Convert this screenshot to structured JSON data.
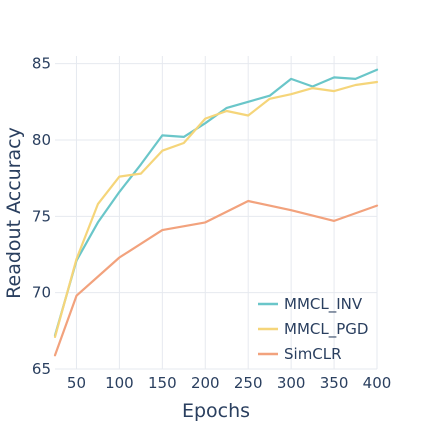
{
  "chart_data": {
    "type": "line",
    "xlabel": "Epochs",
    "ylabel": "Readout Accuracy",
    "xlim": [
      25,
      400
    ],
    "ylim": [
      65,
      85.5
    ],
    "xticks": [
      50,
      100,
      150,
      200,
      250,
      300,
      350,
      400
    ],
    "yticks": [
      65,
      70,
      75,
      80,
      85
    ],
    "grid": true,
    "legend_position": "bottom-right",
    "x": [
      25,
      50,
      75,
      100,
      125,
      150,
      175,
      200,
      225,
      250,
      275,
      300,
      325,
      350,
      375,
      400
    ],
    "series": [
      {
        "name": "MMCL_INV",
        "color": "#6ac6c9",
        "values": [
          67.2,
          72.1,
          74.6,
          76.6,
          78.4,
          80.3,
          80.2,
          81.1,
          82.1,
          82.5,
          82.9,
          84.0,
          83.5,
          84.1,
          84.0,
          84.6
        ]
      },
      {
        "name": "MMCL_PGD",
        "color": "#f5d57a",
        "values": [
          67.1,
          72.2,
          75.8,
          77.6,
          77.8,
          79.3,
          79.8,
          81.4,
          81.9,
          81.6,
          82.7,
          83.0,
          83.4,
          83.2,
          83.6,
          83.8
        ]
      },
      {
        "name": "SimCLR",
        "color": "#f2a27d",
        "values": [
          65.9,
          69.8,
          71.0,
          null,
          null,
          null,
          null,
          null,
          null,
          null,
          null,
          null,
          null,
          null,
          null,
          null
        ]
      }
    ],
    "simclr_points": [
      [
        25,
        65.9
      ],
      [
        50,
        69.8
      ],
      [
        100,
        72.3
      ],
      [
        150,
        74.1
      ],
      [
        200,
        74.6
      ],
      [
        250,
        76.0
      ],
      [
        300,
        75.4
      ],
      [
        350,
        74.7
      ],
      [
        400,
        75.7
      ]
    ]
  }
}
